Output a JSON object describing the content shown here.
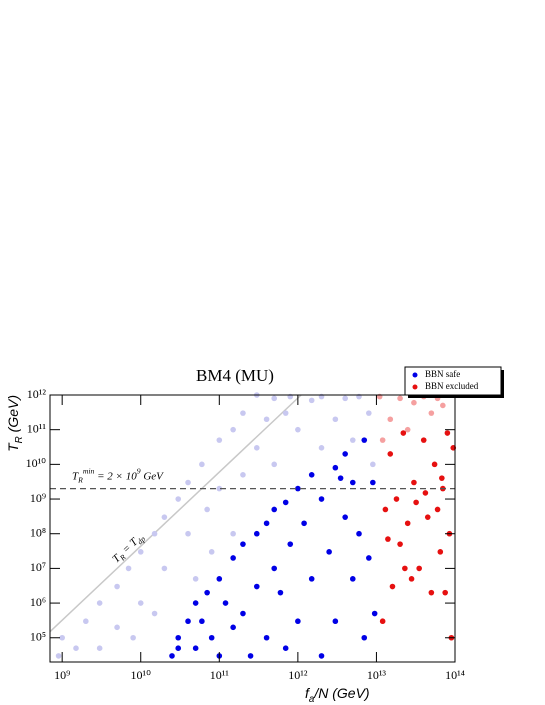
{
  "chart_data": {
    "type": "scatter",
    "title": "BM4 (MU)",
    "x_label": [
      {
        "text": "f"
      },
      {
        "text": "a",
        "sub": true
      },
      {
        "text": "/N (GeV)"
      }
    ],
    "y_label": [
      {
        "text": "T"
      },
      {
        "text": "R",
        "sub": true
      },
      {
        "text": " (GeV)"
      }
    ],
    "log_x": true,
    "log_y": true,
    "xlim": [
      700000000,
      100000000000000
    ],
    "ylim": [
      20000,
      1000000000000
    ],
    "xticks": [
      {
        "value": 1000000000,
        "label": "10⁹"
      },
      {
        "value": 10000000000,
        "label": "10¹⁰"
      },
      {
        "value": 100000000000,
        "label": "10¹¹"
      },
      {
        "value": 1000000000000,
        "label": "10¹²"
      },
      {
        "value": 10000000000000,
        "label": "10¹³"
      },
      {
        "value": 100000000000000,
        "label": "10¹⁴"
      }
    ],
    "yticks": [
      {
        "value": 100000,
        "label": "10⁵"
      },
      {
        "value": 1000000,
        "label": "10⁶"
      },
      {
        "value": 10000000,
        "label": "10⁷"
      },
      {
        "value": 100000000,
        "label": "10⁸"
      },
      {
        "value": 1000000000,
        "label": "10⁹"
      },
      {
        "value": 10000000000,
        "label": "10¹⁰"
      },
      {
        "value": 100000000000,
        "label": "10¹¹"
      },
      {
        "value": 1000000000000,
        "label": "10¹²"
      }
    ],
    "legend": "top-right",
    "hline": {
      "value": 2000000000,
      "color": "#555555",
      "label": [
        {
          "text": "T"
        },
        {
          "text": "R",
          "sub": true
        },
        {
          "text": "min",
          "sup": true
        },
        {
          "text": " = 2 × 10"
        },
        {
          "text": "9",
          "sup": true
        },
        {
          "text": " GeV"
        }
      ]
    },
    "diagonal": {
      "x": [
        700000000,
        1100000000000
      ],
      "y": [
        150000,
        1000000000000
      ],
      "color": "#c8c8c8",
      "label": [
        {
          "text": "T"
        },
        {
          "text": "R",
          "sub": true
        },
        {
          "text": " = T"
        },
        {
          "text": "dp",
          "sub": true
        }
      ]
    },
    "series": [
      {
        "color": "#c8c8f0",
        "x": [
          900000000,
          1000000000,
          1500000000,
          2000000000,
          3000000000,
          3000000000,
          5000000000,
          5000000000,
          7000000000,
          8000000000,
          10000000000,
          10000000000,
          15000000000,
          15000000000,
          20000000000,
          20000000000,
          30000000000,
          30000000000,
          40000000000,
          40000000000,
          50000000000,
          60000000000,
          70000000000,
          80000000000,
          100000000000,
          100000000000,
          150000000000,
          150000000000,
          200000000000,
          200000000000,
          300000000000,
          300000000000,
          400000000000,
          500000000000,
          500000000000,
          700000000000,
          800000000000,
          1000000000000,
          1500000000000,
          2000000000000,
          2000000000000,
          3000000000000,
          4000000000000,
          5000000000000,
          6000000000000,
          8000000000000,
          9000000000000
        ],
        "values": [
          30000,
          100000,
          50000,
          300000,
          1000000,
          50000,
          3000000,
          200000,
          10000000,
          100000,
          30000000,
          1000000,
          100000000,
          500000,
          300000000,
          10000000,
          1000000000,
          50000,
          3000000000,
          100000000,
          5000000,
          10000000000,
          500000000,
          30000000,
          50000000000,
          2000000000,
          100000000000,
          100000000,
          300000000000,
          5000000000,
          1000000000000,
          30000000000,
          200000000000,
          800000000000,
          10000000000,
          300000000000,
          900000000000,
          100000000000,
          700000000000,
          30000000000,
          900000000000,
          200000000000,
          800000000000,
          50000000000,
          900000000000,
          300000000000,
          10000000000
        ]
      },
      {
        "color": "#f5a0a0",
        "x": [
          12000000000000,
          15000000000000,
          20000000000000,
          25000000000000,
          30000000000000,
          40000000000000,
          50000000000000,
          60000000000000,
          11000000000000,
          70000000000000
        ],
        "values": [
          50000000000,
          200000000000,
          800000000000,
          100000000000,
          600000000000,
          900000000000,
          300000000000,
          800000000000,
          900000000000,
          500000000000
        ]
      },
      {
        "name": "BBN safe",
        "color": "#0000e6",
        "x": [
          25000000000,
          30000000000,
          30000000000,
          40000000000,
          50000000000,
          50000000000,
          60000000000,
          70000000000,
          80000000000,
          100000000000,
          100000000000,
          120000000000,
          150000000000,
          150000000000,
          200000000000,
          200000000000,
          250000000000,
          300000000000,
          300000000000,
          400000000000,
          400000000000,
          500000000000,
          500000000000,
          600000000000,
          700000000000,
          700000000000,
          800000000000,
          1000000000000,
          1000000000000,
          1200000000000,
          1500000000000,
          1500000000000,
          2000000000000,
          2000000000000,
          2500000000000,
          3000000000000,
          3000000000000,
          4000000000000,
          4000000000000,
          5000000000000,
          5000000000000,
          6000000000000,
          7000000000000,
          7000000000000,
          8000000000000,
          9000000000000,
          9500000000000,
          3500000000000
        ],
        "values": [
          30000,
          100000,
          50000,
          300000,
          1000000,
          50000,
          300000,
          2000000,
          100000,
          5000000,
          30000,
          1000000,
          20000000,
          200000,
          50000000,
          500000,
          30000,
          100000000,
          3000000,
          200000000,
          100000,
          500000000,
          10000000,
          2000000,
          800000000,
          50000,
          50000000,
          2000000000,
          300000,
          200000000,
          5000000000,
          5000000,
          1000000000,
          30000,
          30000000,
          8000000000,
          300000,
          20000000000,
          300000000,
          5000000,
          3000000000,
          100000000,
          50000000000,
          100000,
          20000000,
          3000000000,
          500000,
          4000000000
        ]
      },
      {
        "name": "BBN excluded",
        "color": "#e61010",
        "x": [
          12000000000000,
          13000000000000,
          15000000000000,
          16000000000000,
          18000000000000,
          20000000000000,
          22000000000000,
          25000000000000,
          28000000000000,
          30000000000000,
          35000000000000,
          40000000000000,
          45000000000000,
          50000000000000,
          55000000000000,
          60000000000000,
          65000000000000,
          70000000000000,
          75000000000000,
          80000000000000,
          85000000000000,
          90000000000000,
          95000000000000,
          14000000000000,
          32000000000000,
          42000000000000,
          23000000000000,
          68000000000000
        ],
        "values": [
          300000,
          500000000,
          20000000000,
          3000000,
          1000000000,
          50000000,
          80000000000,
          200000000,
          5000000,
          3000000000,
          10000000,
          50000000000,
          300000000,
          2000000,
          10000000000,
          500000000,
          30000000,
          2000000000,
          2000000,
          80000000000,
          100000000,
          100000,
          30000000000,
          70000000,
          800000000,
          1500000000,
          10000000,
          4000000000
        ]
      }
    ]
  }
}
